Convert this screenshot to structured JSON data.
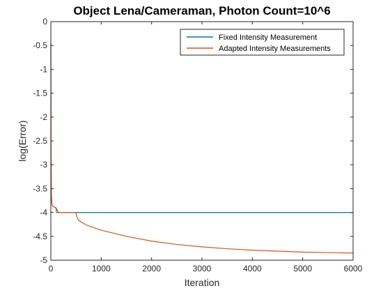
{
  "chart_data": {
    "type": "line",
    "title": "Object Lena/Cameraman, Photon Count=10^6",
    "xlabel": "Iteration",
    "ylabel": "log(Error)",
    "xlim": [
      0,
      6000
    ],
    "ylim": [
      -5,
      0
    ],
    "xticks": [
      "0",
      "1000",
      "2000",
      "3000",
      "4000",
      "5000",
      "6000"
    ],
    "yticks": [
      "0",
      "-0.5",
      "-1",
      "-1.5",
      "-2",
      "-2.5",
      "-3",
      "-3.5",
      "-4",
      "-4.5",
      "-5"
    ],
    "grid": false,
    "legend_position": "top-right",
    "series": [
      {
        "name": "Fixed Intensity Measurement",
        "color": "#0072bd",
        "x": [
          0,
          2,
          5,
          10,
          20,
          40,
          60,
          100,
          150,
          200,
          500,
          1000,
          2000,
          3000,
          4000,
          5000,
          6000
        ],
        "y": [
          -0.45,
          -1.5,
          -2.8,
          -3.6,
          -3.82,
          -3.87,
          -3.88,
          -3.9,
          -4.0,
          -4.0,
          -4.0,
          -4.0,
          -4.0,
          -4.0,
          -4.0,
          -4.0,
          -4.0
        ]
      },
      {
        "name": "Adapted Intensity Measurements",
        "color": "#d95319",
        "x": [
          0,
          2,
          5,
          10,
          20,
          40,
          60,
          100,
          110,
          150,
          200,
          300,
          400,
          490,
          500,
          520,
          550,
          600,
          700,
          800,
          1000,
          1500,
          2000,
          2500,
          3000,
          3500,
          4000,
          4500,
          5000,
          5500,
          6000
        ],
        "y": [
          -0.45,
          -1.5,
          -2.8,
          -3.6,
          -3.82,
          -3.87,
          -3.88,
          -3.9,
          -4.0,
          -4.0,
          -4.0,
          -4.0,
          -4.0,
          -4.0,
          -4.02,
          -4.1,
          -4.16,
          -4.2,
          -4.26,
          -4.3,
          -4.37,
          -4.5,
          -4.6,
          -4.67,
          -4.72,
          -4.76,
          -4.79,
          -4.81,
          -4.83,
          -4.84,
          -4.85
        ]
      }
    ]
  }
}
